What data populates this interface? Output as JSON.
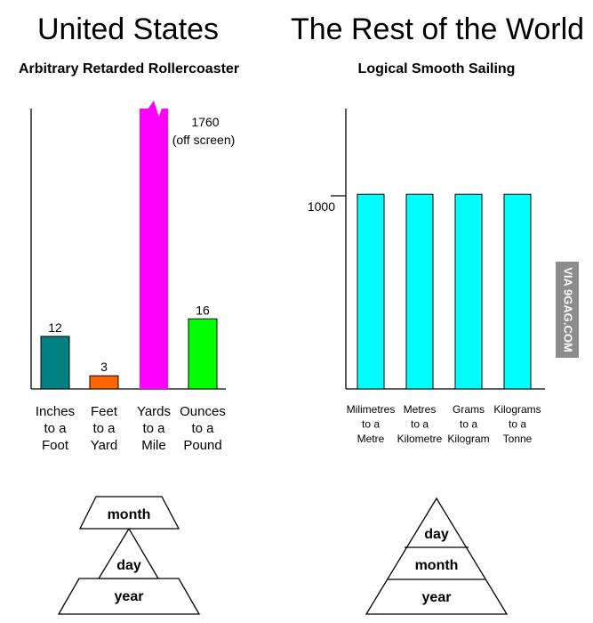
{
  "headings": {
    "left": "United States",
    "right": "The Rest of the World"
  },
  "chart_data": [
    {
      "type": "bar",
      "title": "Arbitrary Retarded Rollercoaster",
      "categories": [
        [
          "Inches",
          "to a",
          "Foot"
        ],
        [
          "Feet",
          "to a",
          "Yard"
        ],
        [
          "Yards",
          "to a",
          "Mile"
        ],
        [
          "Ounces",
          "to a",
          "Pound"
        ]
      ],
      "values": [
        12,
        3,
        1760,
        16
      ],
      "value_labels": [
        "12",
        "3",
        "",
        "16"
      ],
      "colors": [
        "#008080",
        "#ff6600",
        "#ff00ff",
        "#00ff00"
      ],
      "annotation": [
        "1760",
        "(off screen)"
      ],
      "visible_max": 64
    },
    {
      "type": "bar",
      "title": "Logical Smooth Sailing",
      "categories": [
        [
          "Milimetres",
          "to a",
          "Metre"
        ],
        [
          "Metres",
          "to a",
          "Kilometre"
        ],
        [
          "Grams",
          "to a",
          "Kilogram"
        ],
        [
          "Kilograms",
          "to a",
          "Tonne"
        ]
      ],
      "values": [
        1000,
        1000,
        1000,
        1000
      ],
      "colors": [
        "#00ffff",
        "#00ffff",
        "#00ffff",
        "#00ffff"
      ],
      "y_tick": 1000,
      "y_tick_label": "1000",
      "ylim": [
        0,
        1440
      ]
    }
  ],
  "pyramids": {
    "left": {
      "top": "month",
      "middle": "day",
      "bottom": "year"
    },
    "right": {
      "top": "day",
      "middle": "month",
      "bottom": "year"
    }
  },
  "watermark": "VIA 9GAG.COM"
}
